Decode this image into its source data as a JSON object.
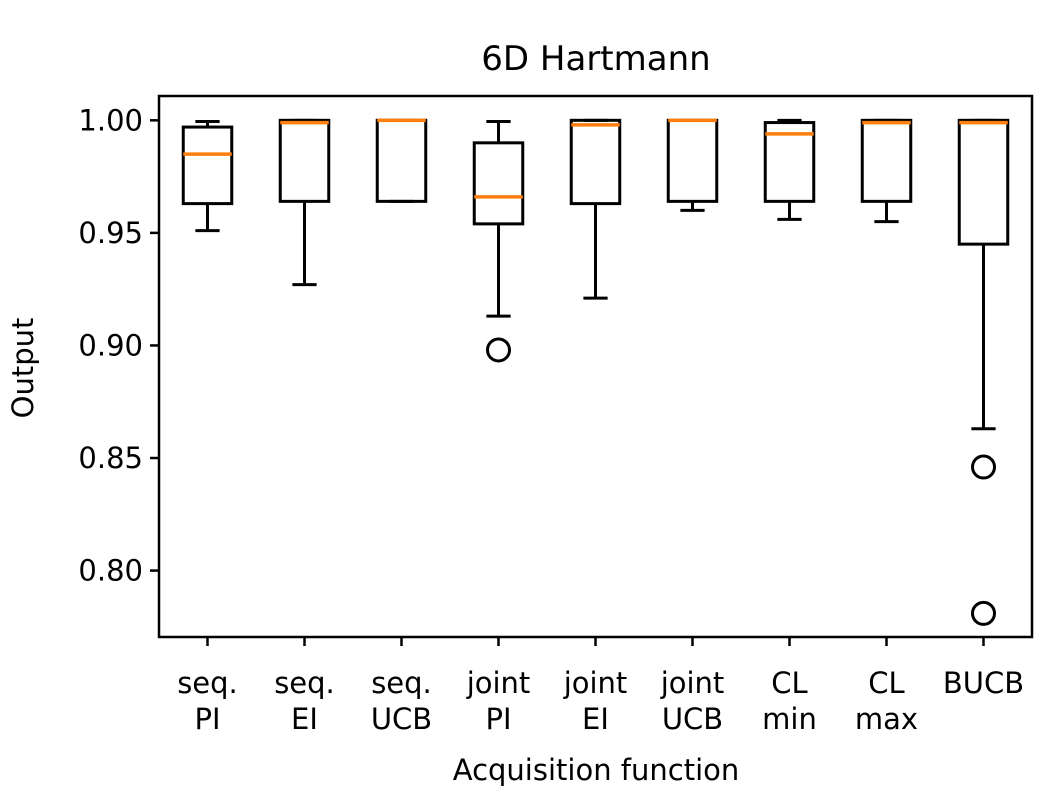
{
  "chart_data": {
    "type": "box",
    "title": "6D Hartmann",
    "xlabel": "Acquisition function",
    "ylabel": "Output",
    "ylim": [
      0.7705,
      1.0108
    ],
    "yticks": [
      {
        "value": 0.8,
        "label": "0.80"
      },
      {
        "value": 0.85,
        "label": "0.85"
      },
      {
        "value": 0.9,
        "label": "0.90"
      },
      {
        "value": 0.95,
        "label": "0.95"
      },
      {
        "value": 1.0,
        "label": "1.00"
      }
    ],
    "median_color": "#ff7f0e",
    "box_color": "#000000",
    "categories": [
      {
        "lines": [
          "seq.",
          "PI"
        ],
        "whisker_low": 0.951,
        "q1": 0.963,
        "median": 0.985,
        "q3": 0.997,
        "whisker_high": 0.9995,
        "outliers": []
      },
      {
        "lines": [
          "seq.",
          "EI"
        ],
        "whisker_low": 0.927,
        "q1": 0.964,
        "median": 0.999,
        "q3": 1.0,
        "whisker_high": 1.0,
        "outliers": []
      },
      {
        "lines": [
          "seq.",
          "UCB"
        ],
        "whisker_low": 0.964,
        "q1": 0.964,
        "median": 1.0,
        "q3": 1.0,
        "whisker_high": 1.0,
        "outliers": []
      },
      {
        "lines": [
          "joint",
          "PI"
        ],
        "whisker_low": 0.913,
        "q1": 0.954,
        "median": 0.966,
        "q3": 0.99,
        "whisker_high": 0.9995,
        "outliers": [
          0.898
        ]
      },
      {
        "lines": [
          "joint",
          "EI"
        ],
        "whisker_low": 0.921,
        "q1": 0.963,
        "median": 0.998,
        "q3": 1.0,
        "whisker_high": 1.0,
        "outliers": []
      },
      {
        "lines": [
          "joint",
          "UCB"
        ],
        "whisker_low": 0.96,
        "q1": 0.964,
        "median": 1.0,
        "q3": 1.0,
        "whisker_high": 1.0,
        "outliers": []
      },
      {
        "lines": [
          "CL",
          "min"
        ],
        "whisker_low": 0.956,
        "q1": 0.964,
        "median": 0.994,
        "q3": 0.999,
        "whisker_high": 1.0,
        "outliers": []
      },
      {
        "lines": [
          "CL",
          "max"
        ],
        "whisker_low": 0.955,
        "q1": 0.964,
        "median": 0.999,
        "q3": 1.0,
        "whisker_high": 1.0,
        "outliers": []
      },
      {
        "lines": [
          "BUCB",
          ""
        ],
        "whisker_low": 0.863,
        "q1": 0.945,
        "median": 0.999,
        "q3": 1.0,
        "whisker_high": 1.0,
        "outliers": [
          0.846,
          0.781
        ]
      }
    ]
  }
}
